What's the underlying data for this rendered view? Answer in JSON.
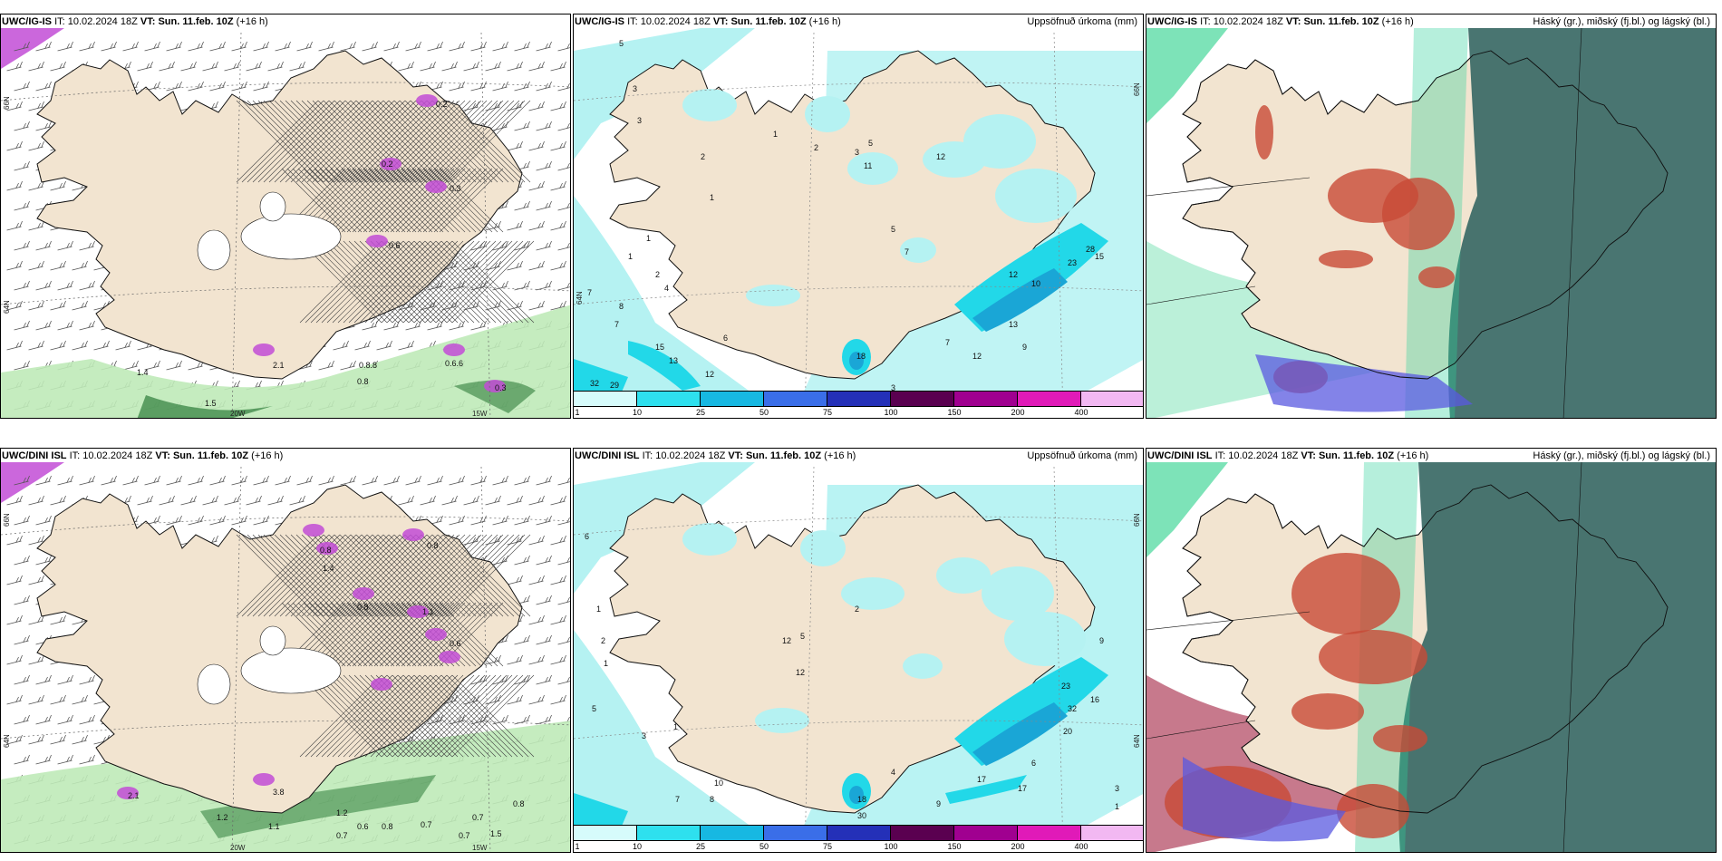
{
  "colors": {
    "land": "#f2e4d0",
    "sea_white": "#ffffff",
    "precip_light": "#b5f2f2",
    "precip_cyan": "#22d8e8",
    "precip_blue": "#1aa6d6",
    "snow_purple": "#c24cd6",
    "rain_green": "#bfeab8",
    "cloud_green": "#3b6b66",
    "high_cloud_red": "#c84a36",
    "low_cloud_blue": "#5a5ae0"
  },
  "top_row": {
    "left": {
      "model": "UWC/IG-IS",
      "it_label": "IT:",
      "it_value": "10.02.2024 18Z",
      "vt_label": "VT:",
      "vt_value": "Sun. 11.feb. 10Z",
      "lead": "(+16 h)",
      "right_title": "",
      "lat_labels": [
        "66N",
        "64N"
      ],
      "lon_labels": [
        "20W",
        "15W"
      ],
      "numbers": [
        "0.2",
        "0.2",
        "0.3",
        "0.6",
        "0.8",
        "2.1",
        "0.8.8",
        "0.6.6",
        "0.3",
        "1.4",
        "1.5"
      ]
    },
    "middle": {
      "model": "UWC/IG-IS",
      "it_label": "IT:",
      "it_value": "10.02.2024 18Z",
      "vt_label": "VT:",
      "vt_value": "Sun. 11.feb. 10Z",
      "lead": "(+16 h)",
      "right_title": "Uppsöfnuð úrkoma (mm)",
      "lat_labels": [
        "66N",
        "64N"
      ],
      "numbers": [
        "5",
        "3",
        "3",
        "2",
        "1",
        "2",
        "5",
        "1",
        "7",
        "8",
        "7",
        "1",
        "6",
        "15",
        "13",
        "12",
        "32",
        "29",
        "1",
        "2",
        "4",
        "3",
        "12",
        "5",
        "7",
        "11",
        "18",
        "10",
        "23",
        "28",
        "15",
        "13",
        "9",
        "12",
        "7",
        "12",
        "3"
      ]
    },
    "right": {
      "model": "UWC/IG-IS",
      "it_label": "IT:",
      "it_value": "10.02.2024 18Z",
      "vt_label": "VT:",
      "vt_value": "Sun. 11.feb. 10Z",
      "lead": "(+16 h)",
      "right_title": "Háský (gr.), miðský (fj.bl.) og lágský (bl.)"
    }
  },
  "bottom_row": {
    "left": {
      "model": "UWC/DINI ISL",
      "it_label": "IT:",
      "it_value": "10.02.2024 18Z",
      "vt_label": "VT:",
      "vt_value": "Sun. 11.feb. 10Z",
      "lead": "(+16 h)",
      "right_title": "",
      "lat_labels": [
        "66N",
        "64N"
      ],
      "lon_labels": [
        "20W",
        "15W"
      ],
      "numbers": [
        "0.8",
        "1.4",
        "0.8",
        "0.8",
        "1.1",
        "0.6",
        "3.8",
        "2.1",
        "1.2",
        "1.1",
        "1.2",
        "0.6",
        "0.8",
        "0.7",
        "0.7",
        "0.7",
        "0.8",
        "1.5",
        "0.7"
      ]
    },
    "middle": {
      "model": "UWC/DINI ISL",
      "it_label": "IT:",
      "it_value": "10.02.2024 18Z",
      "vt_label": "VT:",
      "vt_value": "Sun. 11.feb. 10Z",
      "lead": "(+16 h)",
      "right_title": "Uppsöfnuð úrkoma (mm)",
      "lat_labels": [
        "66N",
        "64N"
      ],
      "numbers": [
        "6",
        "1",
        "2",
        "1",
        "5",
        "3",
        "1",
        "7",
        "8",
        "10",
        "12",
        "5",
        "2",
        "12",
        "18",
        "30",
        "4",
        "11",
        "9",
        "17",
        "17",
        "6",
        "23",
        "32",
        "20",
        "16",
        "9",
        "3",
        "4",
        "1"
      ]
    },
    "right": {
      "model": "UWC/DINI ISL",
      "it_label": "IT:",
      "it_value": "10.02.2024 18Z",
      "vt_label": "VT:",
      "vt_value": "Sun. 11.feb. 10Z",
      "lead": "(+16 h)",
      "right_title": "Háský (gr.), miðský (fj.bl.) og lágský (bl.)"
    }
  },
  "colorbar": {
    "labels": [
      "1",
      "10",
      "25",
      "50",
      "75",
      "100",
      "150",
      "200",
      "400"
    ],
    "swatches": [
      "#d6fbfb",
      "#2ee0ee",
      "#17b8e2",
      "#3a6ee8",
      "#2430b8",
      "#5a0050",
      "#a00090",
      "#e01ab8",
      "#f2b8f2"
    ]
  }
}
